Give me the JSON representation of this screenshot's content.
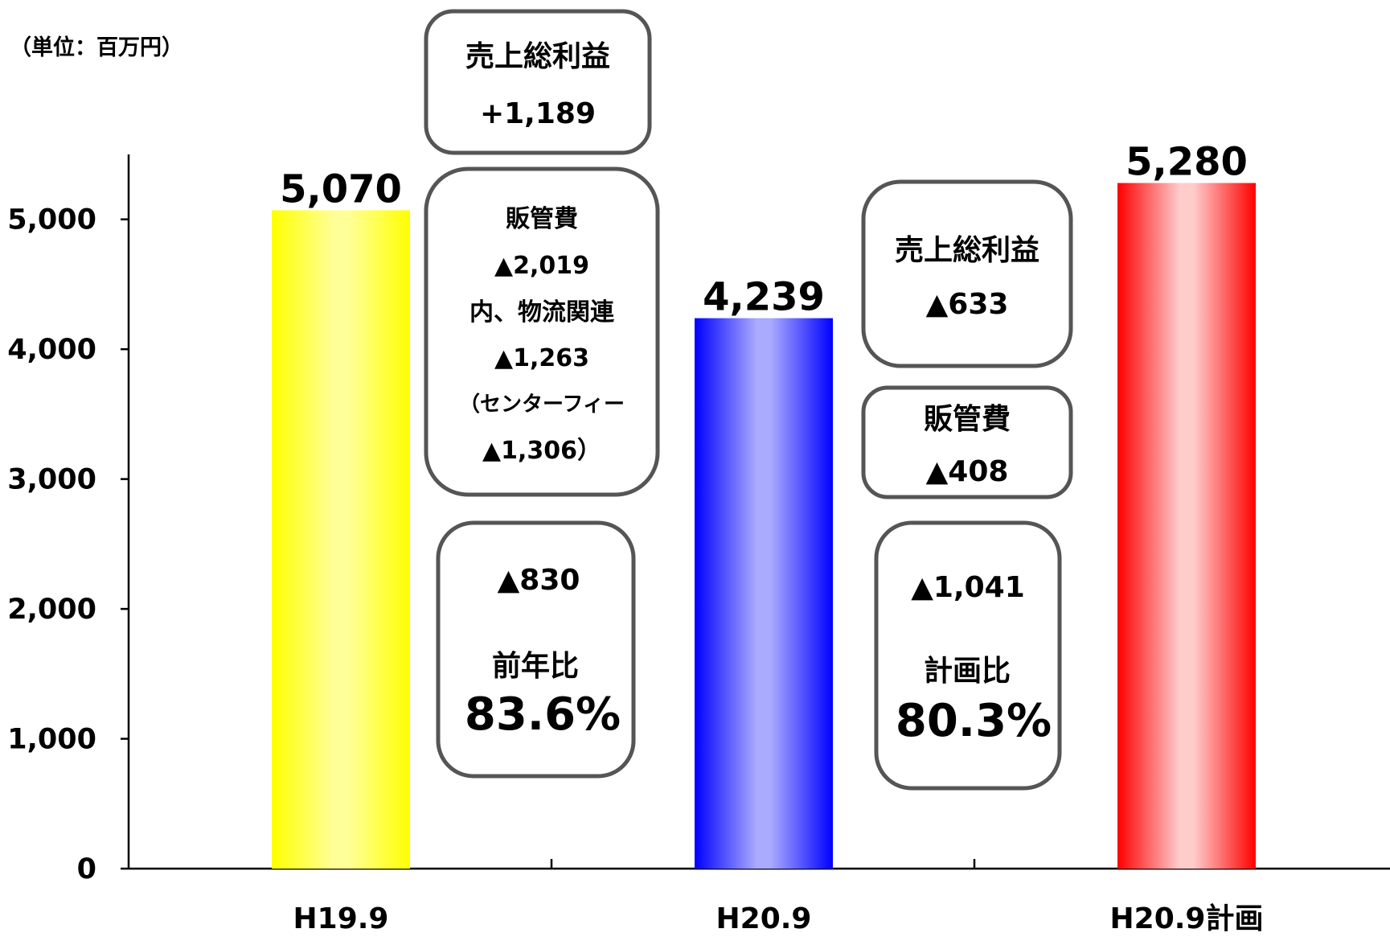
{
  "chart_data": {
    "type": "bar",
    "unit_label": "（単位：百万円）",
    "categories": [
      "H19.9",
      "H20.9",
      "H20.9計画"
    ],
    "values": [
      5070,
      4239,
      5280
    ],
    "value_labels": [
      "5,070",
      "4,239",
      "5,280"
    ],
    "ylim": [
      0,
      5500
    ],
    "yticks": [
      0,
      1000,
      2000,
      3000,
      4000,
      5000
    ],
    "ytick_labels": [
      "0",
      "1,000",
      "2,000",
      "3,000",
      "4,000",
      "5,000"
    ],
    "colors": {
      "H19.9": {
        "edge": "#ffff00",
        "mid": "#ffff99"
      },
      "H20.9": {
        "edge": "#0000ff",
        "mid": "#aaaaff"
      },
      "H20.9計画": {
        "edge": "#ff0000",
        "mid": "#ffcccc"
      }
    },
    "grid": false,
    "legend": "none"
  },
  "annotations": {
    "gross_profit_up": {
      "title": "売上総利益",
      "value": "+1,189"
    },
    "sga_up": {
      "title": "販管費",
      "value": "▲2,019",
      "sub": "内、物流関連",
      "sub_value": "▲1,263",
      "sub2": "（センターフィー",
      "sub2_value": "▲1,306）"
    },
    "yoy": {
      "change": "▲830",
      "label": "前年比",
      "ratio": "83.6%"
    },
    "gross_profit_down": {
      "title": "売上総利益",
      "value": "▲633"
    },
    "sga_down": {
      "title": "販管費",
      "value": "▲408"
    },
    "vs_plan": {
      "change": "▲1,041",
      "label": "計画比",
      "ratio": "80.3%"
    }
  }
}
